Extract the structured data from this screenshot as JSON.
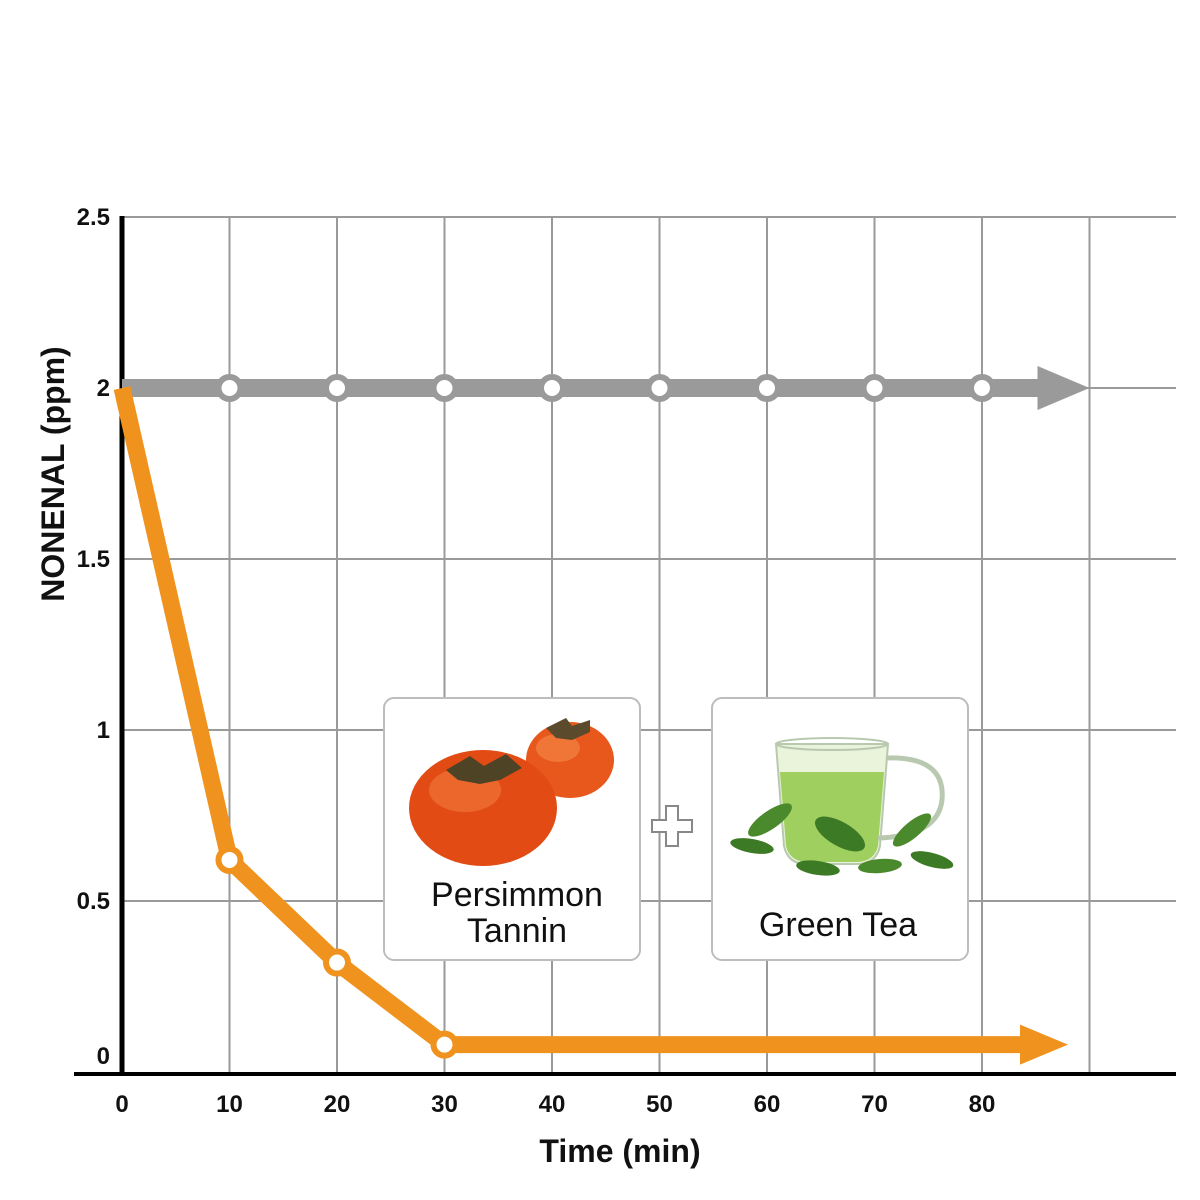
{
  "chart_data": {
    "type": "line",
    "title": "",
    "xlabel": "Time (min)",
    "ylabel": "NONENAL (ppm)",
    "xlim": [
      0,
      90
    ],
    "ylim": [
      0,
      2.5
    ],
    "x_tick_labels": [
      "0",
      "10",
      "20",
      "30",
      "40",
      "50",
      "60",
      "70",
      "80"
    ],
    "y_tick_labels": [
      "0",
      "0.5",
      "1",
      "1.5",
      "2",
      "2.5"
    ],
    "grid": true,
    "series": [
      {
        "color": "#9a9a9a",
        "x": [
          0,
          10,
          20,
          30,
          40,
          50,
          60,
          70,
          80,
          90
        ],
        "y": [
          2.0,
          2.0,
          2.0,
          2.0,
          2.0,
          2.0,
          2.0,
          2.0,
          2.0,
          2.0
        ],
        "marker_x": [
          10,
          20,
          30,
          40,
          50,
          60,
          70,
          80
        ],
        "arrow_end": true
      },
      {
        "color": "#f0921e",
        "x": [
          0,
          10,
          20,
          30,
          88
        ],
        "y": [
          2.0,
          0.62,
          0.32,
          0.08,
          0.08
        ],
        "marker_x": [
          10,
          20,
          30
        ],
        "arrow_end": true
      }
    ],
    "annotations": [
      {
        "text_lines": [
          "Persimmon",
          "Tannin"
        ],
        "icon": "persimmon-icon"
      },
      {
        "text": "+",
        "icon": "plus-icon"
      },
      {
        "text_lines": [
          "Green Tea"
        ],
        "icon": "green-tea-cup-icon"
      }
    ]
  }
}
